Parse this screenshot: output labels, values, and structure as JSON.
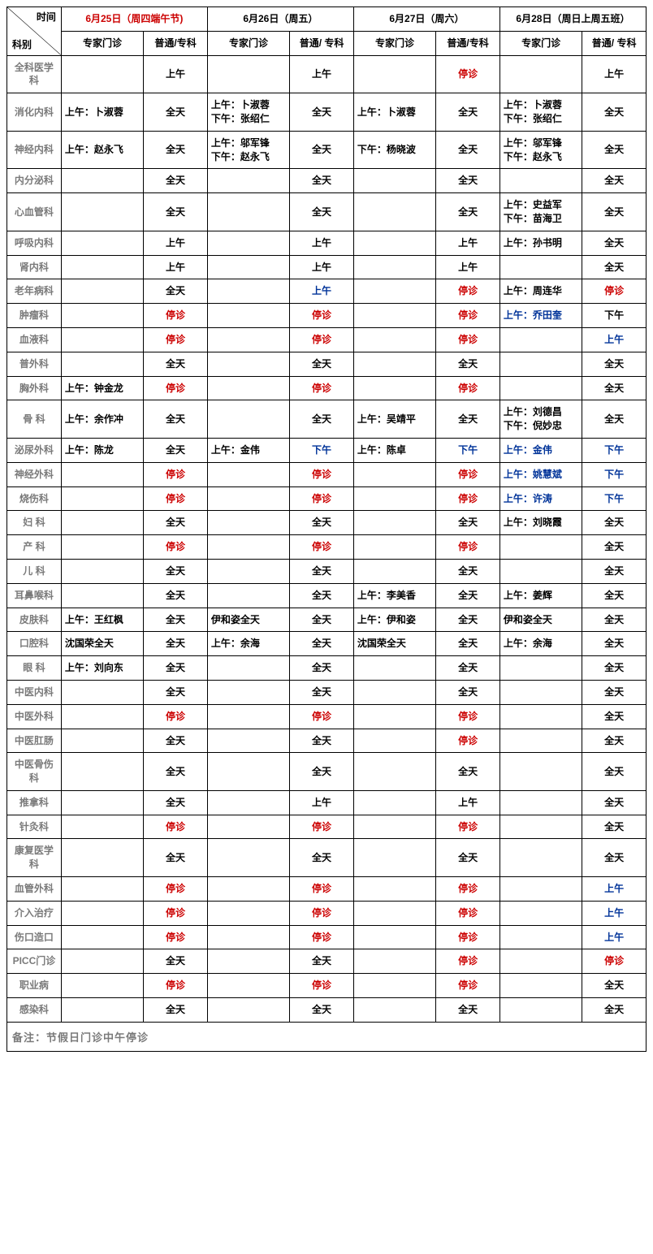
{
  "colors": {
    "text_black": "#000000",
    "text_red": "#cc0000",
    "text_blue": "#003399",
    "text_gray": "#7a7a7a",
    "border": "#000000",
    "background": "#ffffff"
  },
  "header": {
    "top_right": "时间",
    "bottom_left": "科别",
    "days": [
      {
        "label": "6月25日（周四端午节)",
        "color": "red"
      },
      {
        "label": "6月26日（周五）",
        "color": "black"
      },
      {
        "label": "6月27日（周六）",
        "color": "black"
      },
      {
        "label": "6月28日（周日上周五班）",
        "color": "black"
      }
    ],
    "sub_expert": "专家门诊",
    "sub_general": [
      "普通/专科",
      "普通/ 专科",
      "普通/专科",
      "普通/ 专科"
    ]
  },
  "rows": [
    {
      "dept": "全科医学科",
      "cells": [
        [
          "",
          ""
        ],
        [
          "上午",
          ""
        ],
        [
          "",
          ""
        ],
        [
          "上午",
          ""
        ],
        [
          "",
          ""
        ],
        [
          "停诊",
          "red"
        ],
        [
          "",
          ""
        ],
        [
          "上午",
          ""
        ]
      ]
    },
    {
      "dept": "消化内科",
      "cells": [
        [
          "上午：卜淑蓉",
          "",
          "l"
        ],
        [
          "全天",
          ""
        ],
        [
          "上午：卜淑蓉\n下午：张绍仁",
          "",
          "l"
        ],
        [
          "全天",
          ""
        ],
        [
          "上午：卜淑蓉",
          "",
          "l"
        ],
        [
          "全天",
          ""
        ],
        [
          "上午：卜淑蓉\n下午：张绍仁",
          "",
          "l"
        ],
        [
          "全天",
          ""
        ]
      ]
    },
    {
      "dept": "神经内科",
      "cells": [
        [
          "上午：赵永飞",
          "",
          "l"
        ],
        [
          "全天",
          ""
        ],
        [
          "上午：邬军锋\n下午：赵永飞",
          "",
          "l"
        ],
        [
          "全天",
          ""
        ],
        [
          "下午：杨晓波",
          "",
          "l"
        ],
        [
          "全天",
          ""
        ],
        [
          "上午：邬军锋\n下午：赵永飞",
          "",
          "l"
        ],
        [
          "全天",
          ""
        ]
      ]
    },
    {
      "dept": "内分泌科",
      "cells": [
        [
          "",
          ""
        ],
        [
          "全天",
          ""
        ],
        [
          "",
          ""
        ],
        [
          "全天",
          ""
        ],
        [
          "",
          ""
        ],
        [
          "全天",
          ""
        ],
        [
          "",
          ""
        ],
        [
          "全天",
          ""
        ]
      ]
    },
    {
      "dept": "心血管科",
      "cells": [
        [
          "",
          ""
        ],
        [
          "全天",
          ""
        ],
        [
          "",
          ""
        ],
        [
          "全天",
          ""
        ],
        [
          "",
          ""
        ],
        [
          "全天",
          ""
        ],
        [
          "上午：史益军\n下午：苗海卫",
          "",
          "l"
        ],
        [
          "全天",
          ""
        ]
      ]
    },
    {
      "dept": "呼吸内科",
      "cells": [
        [
          "",
          ""
        ],
        [
          "上午",
          ""
        ],
        [
          "",
          ""
        ],
        [
          "上午",
          ""
        ],
        [
          "",
          ""
        ],
        [
          "上午",
          ""
        ],
        [
          "上午：孙书明",
          "",
          "l"
        ],
        [
          "全天",
          ""
        ]
      ]
    },
    {
      "dept": "肾内科",
      "cells": [
        [
          "",
          ""
        ],
        [
          "上午",
          ""
        ],
        [
          "",
          ""
        ],
        [
          "上午",
          ""
        ],
        [
          "",
          ""
        ],
        [
          "上午",
          ""
        ],
        [
          "",
          ""
        ],
        [
          "全天",
          ""
        ]
      ]
    },
    {
      "dept": "老年病科",
      "cells": [
        [
          "",
          ""
        ],
        [
          "全天",
          ""
        ],
        [
          "",
          ""
        ],
        [
          "上午",
          "blue"
        ],
        [
          "",
          ""
        ],
        [
          "停诊",
          "red"
        ],
        [
          "上午：周连华",
          "",
          "l"
        ],
        [
          "停诊",
          "red"
        ]
      ]
    },
    {
      "dept": "肿瘤科",
      "cells": [
        [
          "",
          ""
        ],
        [
          "停诊",
          "red"
        ],
        [
          "",
          ""
        ],
        [
          "停诊",
          "red"
        ],
        [
          "",
          ""
        ],
        [
          "停诊",
          "red"
        ],
        [
          "上午：乔田奎",
          "blue",
          "l"
        ],
        [
          "下午",
          ""
        ]
      ]
    },
    {
      "dept": "血液科",
      "cells": [
        [
          "",
          ""
        ],
        [
          "停诊",
          "red"
        ],
        [
          "",
          ""
        ],
        [
          "停诊",
          "red"
        ],
        [
          "",
          ""
        ],
        [
          "停诊",
          "red"
        ],
        [
          "",
          ""
        ],
        [
          "上午",
          "blue"
        ]
      ]
    },
    {
      "dept": "普外科",
      "cells": [
        [
          "",
          ""
        ],
        [
          "全天",
          ""
        ],
        [
          "",
          ""
        ],
        [
          "全天",
          ""
        ],
        [
          "",
          ""
        ],
        [
          "全天",
          ""
        ],
        [
          "",
          ""
        ],
        [
          "全天",
          ""
        ]
      ]
    },
    {
      "dept": "胸外科",
      "cells": [
        [
          "上午：钟金龙",
          "",
          "l"
        ],
        [
          "停诊",
          "red"
        ],
        [
          "",
          ""
        ],
        [
          "停诊",
          "red"
        ],
        [
          "",
          ""
        ],
        [
          "停诊",
          "red"
        ],
        [
          "",
          ""
        ],
        [
          "全天",
          ""
        ]
      ]
    },
    {
      "dept": "骨 科",
      "cells": [
        [
          "上午：余作冲",
          "",
          "l"
        ],
        [
          "全天",
          ""
        ],
        [
          "",
          ""
        ],
        [
          "全天",
          ""
        ],
        [
          "上午：吴靖平",
          "",
          "l"
        ],
        [
          "全天",
          ""
        ],
        [
          "上午：刘德昌\n下午：倪妙忠",
          "",
          "l"
        ],
        [
          "全天",
          ""
        ]
      ]
    },
    {
      "dept": "泌尿外科",
      "cells": [
        [
          "上午：陈龙",
          "",
          "l"
        ],
        [
          "全天",
          ""
        ],
        [
          "上午：金伟",
          "",
          "l"
        ],
        [
          "下午",
          "blue"
        ],
        [
          "上午：陈卓",
          "",
          "l"
        ],
        [
          "下午",
          "blue"
        ],
        [
          "上午：金伟",
          "blue",
          "l"
        ],
        [
          "下午",
          "blue"
        ]
      ]
    },
    {
      "dept": "神经外科",
      "cells": [
        [
          "",
          ""
        ],
        [
          "停诊",
          "red"
        ],
        [
          "",
          ""
        ],
        [
          "停诊",
          "red"
        ],
        [
          "",
          ""
        ],
        [
          "停诊",
          "red"
        ],
        [
          "上午：姚慧斌",
          "blue",
          "l"
        ],
        [
          "下午",
          "blue"
        ]
      ]
    },
    {
      "dept": "烧伤科",
      "cells": [
        [
          "",
          ""
        ],
        [
          "停诊",
          "red"
        ],
        [
          "",
          ""
        ],
        [
          "停诊",
          "red"
        ],
        [
          "",
          ""
        ],
        [
          "停诊",
          "red"
        ],
        [
          "上午：许涛",
          "blue",
          "l"
        ],
        [
          "下午",
          "blue"
        ]
      ]
    },
    {
      "dept": "妇 科",
      "cells": [
        [
          "",
          ""
        ],
        [
          "全天",
          ""
        ],
        [
          "",
          ""
        ],
        [
          "全天",
          ""
        ],
        [
          "",
          ""
        ],
        [
          "全天",
          ""
        ],
        [
          "上午：刘晓霞",
          "",
          "l"
        ],
        [
          "全天",
          ""
        ]
      ]
    },
    {
      "dept": "产 科",
      "cells": [
        [
          "",
          ""
        ],
        [
          "停诊",
          "red"
        ],
        [
          "",
          ""
        ],
        [
          "停诊",
          "red"
        ],
        [
          "",
          ""
        ],
        [
          "停诊",
          "red"
        ],
        [
          "",
          ""
        ],
        [
          "全天",
          ""
        ]
      ]
    },
    {
      "dept": "儿 科",
      "cells": [
        [
          "",
          ""
        ],
        [
          "全天",
          ""
        ],
        [
          "",
          ""
        ],
        [
          "全天",
          ""
        ],
        [
          "",
          ""
        ],
        [
          "全天",
          ""
        ],
        [
          "",
          ""
        ],
        [
          "全天",
          ""
        ]
      ]
    },
    {
      "dept": "耳鼻喉科",
      "cells": [
        [
          "",
          ""
        ],
        [
          "全天",
          ""
        ],
        [
          "",
          ""
        ],
        [
          "全天",
          ""
        ],
        [
          "上午：李美香",
          "",
          "l"
        ],
        [
          "全天",
          ""
        ],
        [
          "上午：姜辉",
          "",
          "l"
        ],
        [
          "全天",
          ""
        ]
      ]
    },
    {
      "dept": "皮肤科",
      "cells": [
        [
          "上午：王红枫",
          "",
          "l"
        ],
        [
          "全天",
          ""
        ],
        [
          "伊和姿全天",
          "",
          "l"
        ],
        [
          "全天",
          ""
        ],
        [
          "上午：伊和姿",
          "",
          "l"
        ],
        [
          "全天",
          ""
        ],
        [
          "伊和姿全天",
          "",
          "l"
        ],
        [
          "全天",
          ""
        ]
      ]
    },
    {
      "dept": "口腔科",
      "cells": [
        [
          "沈国荣全天",
          "",
          "l"
        ],
        [
          "全天",
          ""
        ],
        [
          "上午：余海",
          "",
          "l"
        ],
        [
          "全天",
          ""
        ],
        [
          "沈国荣全天",
          "",
          "l"
        ],
        [
          "全天",
          ""
        ],
        [
          "上午：余海",
          "",
          "l"
        ],
        [
          "全天",
          ""
        ]
      ]
    },
    {
      "dept": "眼 科",
      "cells": [
        [
          "上午：刘向东",
          "",
          "l"
        ],
        [
          "全天",
          ""
        ],
        [
          "",
          ""
        ],
        [
          "全天",
          ""
        ],
        [
          "",
          ""
        ],
        [
          "全天",
          ""
        ],
        [
          "",
          ""
        ],
        [
          "全天",
          ""
        ]
      ]
    },
    {
      "dept": "中医内科",
      "cells": [
        [
          "",
          ""
        ],
        [
          "全天",
          ""
        ],
        [
          "",
          ""
        ],
        [
          "全天",
          ""
        ],
        [
          "",
          ""
        ],
        [
          "全天",
          ""
        ],
        [
          "",
          ""
        ],
        [
          "全天",
          ""
        ]
      ]
    },
    {
      "dept": "中医外科",
      "cells": [
        [
          "",
          ""
        ],
        [
          "停诊",
          "red"
        ],
        [
          "",
          ""
        ],
        [
          "停诊",
          "red"
        ],
        [
          "",
          ""
        ],
        [
          "停诊",
          "red"
        ],
        [
          "",
          ""
        ],
        [
          "全天",
          ""
        ]
      ]
    },
    {
      "dept": "中医肛肠",
      "cells": [
        [
          "",
          ""
        ],
        [
          "全天",
          ""
        ],
        [
          "",
          ""
        ],
        [
          "全天",
          ""
        ],
        [
          "",
          ""
        ],
        [
          "停诊",
          "red"
        ],
        [
          "",
          ""
        ],
        [
          "全天",
          ""
        ]
      ]
    },
    {
      "dept": "中医骨伤科",
      "cells": [
        [
          "",
          ""
        ],
        [
          "全天",
          ""
        ],
        [
          "",
          ""
        ],
        [
          "全天",
          ""
        ],
        [
          "",
          ""
        ],
        [
          "全天",
          ""
        ],
        [
          "",
          ""
        ],
        [
          "全天",
          ""
        ]
      ]
    },
    {
      "dept": "推拿科",
      "cells": [
        [
          "",
          ""
        ],
        [
          "全天",
          ""
        ],
        [
          "",
          ""
        ],
        [
          "上午",
          ""
        ],
        [
          "",
          ""
        ],
        [
          "上午",
          ""
        ],
        [
          "",
          ""
        ],
        [
          "全天",
          ""
        ]
      ]
    },
    {
      "dept": "针灸科",
      "cells": [
        [
          "",
          ""
        ],
        [
          "停诊",
          "red"
        ],
        [
          "",
          ""
        ],
        [
          "停诊",
          "red"
        ],
        [
          "",
          ""
        ],
        [
          "停诊",
          "red"
        ],
        [
          "",
          ""
        ],
        [
          "全天",
          ""
        ]
      ]
    },
    {
      "dept": "康复医学科",
      "cells": [
        [
          "",
          ""
        ],
        [
          "全天",
          ""
        ],
        [
          "",
          ""
        ],
        [
          "全天",
          ""
        ],
        [
          "",
          ""
        ],
        [
          "全天",
          ""
        ],
        [
          "",
          ""
        ],
        [
          "全天",
          ""
        ]
      ]
    },
    {
      "dept": "血管外科",
      "cells": [
        [
          "",
          ""
        ],
        [
          "停诊",
          "red"
        ],
        [
          "",
          ""
        ],
        [
          "停诊",
          "red"
        ],
        [
          "",
          ""
        ],
        [
          "停诊",
          "red"
        ],
        [
          "",
          ""
        ],
        [
          "上午",
          "blue"
        ]
      ]
    },
    {
      "dept": "介入治疗",
      "cells": [
        [
          "",
          ""
        ],
        [
          "停诊",
          "red"
        ],
        [
          "",
          ""
        ],
        [
          "停诊",
          "red"
        ],
        [
          "",
          ""
        ],
        [
          "停诊",
          "red"
        ],
        [
          "",
          ""
        ],
        [
          "上午",
          "blue"
        ]
      ]
    },
    {
      "dept": "伤口造口",
      "cells": [
        [
          "",
          ""
        ],
        [
          "停诊",
          "red"
        ],
        [
          "",
          ""
        ],
        [
          "停诊",
          "red"
        ],
        [
          "",
          ""
        ],
        [
          "停诊",
          "red"
        ],
        [
          "",
          ""
        ],
        [
          "上午",
          "blue"
        ]
      ]
    },
    {
      "dept": "PICC门诊",
      "cells": [
        [
          "",
          ""
        ],
        [
          "全天",
          ""
        ],
        [
          "",
          ""
        ],
        [
          "全天",
          ""
        ],
        [
          "",
          ""
        ],
        [
          "停诊",
          "red"
        ],
        [
          "",
          ""
        ],
        [
          "停诊",
          "red"
        ]
      ]
    },
    {
      "dept": "职业病",
      "cells": [
        [
          "",
          ""
        ],
        [
          "停诊",
          "red"
        ],
        [
          "",
          ""
        ],
        [
          "停诊",
          "red"
        ],
        [
          "",
          ""
        ],
        [
          "停诊",
          "red"
        ],
        [
          "",
          ""
        ],
        [
          "全天",
          ""
        ]
      ]
    },
    {
      "dept": "感染科",
      "cells": [
        [
          "",
          ""
        ],
        [
          "全天",
          ""
        ],
        [
          "",
          ""
        ],
        [
          "全天",
          ""
        ],
        [
          "",
          ""
        ],
        [
          "全天",
          ""
        ],
        [
          "",
          ""
        ],
        [
          "全天",
          ""
        ]
      ]
    }
  ],
  "footer": "备注：节假日门诊中午停诊"
}
